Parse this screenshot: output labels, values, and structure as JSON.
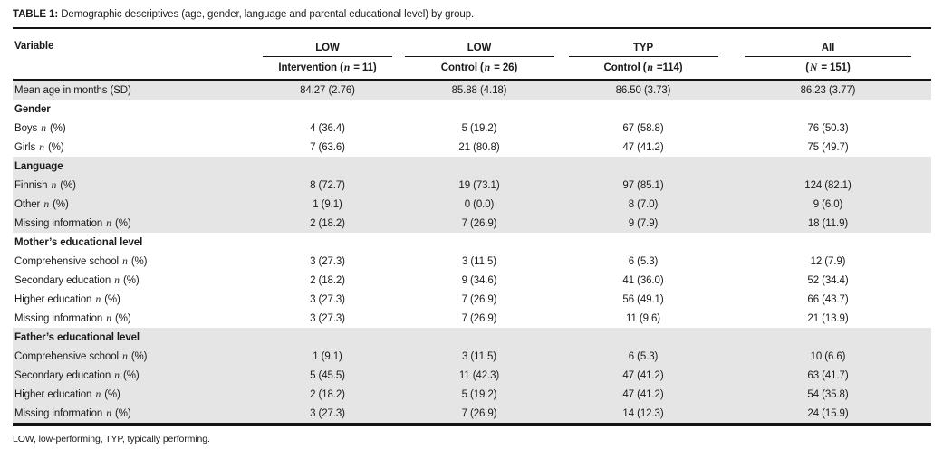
{
  "title": {
    "prefix": "TABLE 1:",
    "text": "Demographic descriptives (age, gender, language and parental educational level) by group."
  },
  "table": {
    "variable_header": "Variable",
    "groups": [
      {
        "label": "LOW",
        "sub": "Intervention (n = 11)"
      },
      {
        "label": "LOW",
        "sub": "Control (n = 26)"
      },
      {
        "label": "TYP",
        "sub": "Control (n =114)"
      },
      {
        "label": "All",
        "sub": "(N = 151)"
      }
    ],
    "rows": [
      {
        "label": "Mean age in months (SD)",
        "type": "data",
        "shaded": true,
        "values": [
          "84.27 (2.76)",
          "85.88 (4.18)",
          "86.50 (3.73)",
          "86.23 (3.77)"
        ]
      },
      {
        "label": "Gender",
        "type": "section",
        "shaded": false,
        "values": [
          "",
          "",
          "",
          ""
        ]
      },
      {
        "label": "Boys n (%)",
        "type": "data",
        "shaded": false,
        "values": [
          "4 (36.4)",
          "5 (19.2)",
          "67 (58.8)",
          "76 (50.3)"
        ]
      },
      {
        "label": "Girls n (%)",
        "type": "data",
        "shaded": false,
        "values": [
          "7 (63.6)",
          "21 (80.8)",
          "47 (41.2)",
          "75 (49.7)"
        ]
      },
      {
        "label": "Language",
        "type": "section",
        "shaded": true,
        "values": [
          "",
          "",
          "",
          ""
        ]
      },
      {
        "label": "Finnish n (%)",
        "type": "data",
        "shaded": true,
        "values": [
          "8 (72.7)",
          "19 (73.1)",
          "97 (85.1)",
          "124 (82.1)"
        ]
      },
      {
        "label": "Other n (%)",
        "type": "data",
        "shaded": true,
        "values": [
          "1 (9.1)",
          "0 (0.0)",
          "8 (7.0)",
          "9 (6.0)"
        ]
      },
      {
        "label": "Missing information n (%)",
        "type": "data",
        "shaded": true,
        "values": [
          "2 (18.2)",
          "7 (26.9)",
          "9 (7.9)",
          "18 (11.9)"
        ]
      },
      {
        "label": "Mother’s educational level",
        "type": "section",
        "shaded": false,
        "values": [
          "",
          "",
          "",
          ""
        ]
      },
      {
        "label": "Comprehensive school n (%)",
        "type": "data",
        "shaded": false,
        "values": [
          "3 (27.3)",
          "3 (11.5)",
          "6 (5.3)",
          "12 (7.9)"
        ]
      },
      {
        "label": "Secondary education n (%)",
        "type": "data",
        "shaded": false,
        "values": [
          "2 (18.2)",
          "9 (34.6)",
          "41 (36.0)",
          "52 (34.4)"
        ]
      },
      {
        "label": "Higher education n (%)",
        "type": "data",
        "shaded": false,
        "values": [
          "3 (27.3)",
          "7 (26.9)",
          "56 (49.1)",
          "66 (43.7)"
        ]
      },
      {
        "label": "Missing information n (%)",
        "type": "data",
        "shaded": false,
        "values": [
          "3 (27.3)",
          "7 (26.9)",
          "11 (9.6)",
          "21 (13.9)"
        ]
      },
      {
        "label": "Father’s educational level",
        "type": "section",
        "shaded": true,
        "values": [
          "",
          "",
          "",
          ""
        ]
      },
      {
        "label": "Comprehensive school n (%)",
        "type": "data",
        "shaded": true,
        "values": [
          "1 (9.1)",
          "3 (11.5)",
          "6 (5.3)",
          "10 (6.6)"
        ]
      },
      {
        "label": "Secondary education n (%)",
        "type": "data",
        "shaded": true,
        "values": [
          "5 (45.5)",
          "11 (42.3)",
          "47 (41.2)",
          "63 (41.7)"
        ]
      },
      {
        "label": "Higher education n (%)",
        "type": "data",
        "shaded": true,
        "values": [
          "2 (18.2)",
          "5 (19.2)",
          "47 (41.2)",
          "54 (35.8)"
        ]
      },
      {
        "label": "Missing information n (%)",
        "type": "data",
        "shaded": true,
        "values": [
          "3 (27.3)",
          "7 (26.9)",
          "14 (12.3)",
          "24 (15.9)"
        ]
      }
    ]
  },
  "footnote": "LOW, low-performing, TYP, typically performing."
}
